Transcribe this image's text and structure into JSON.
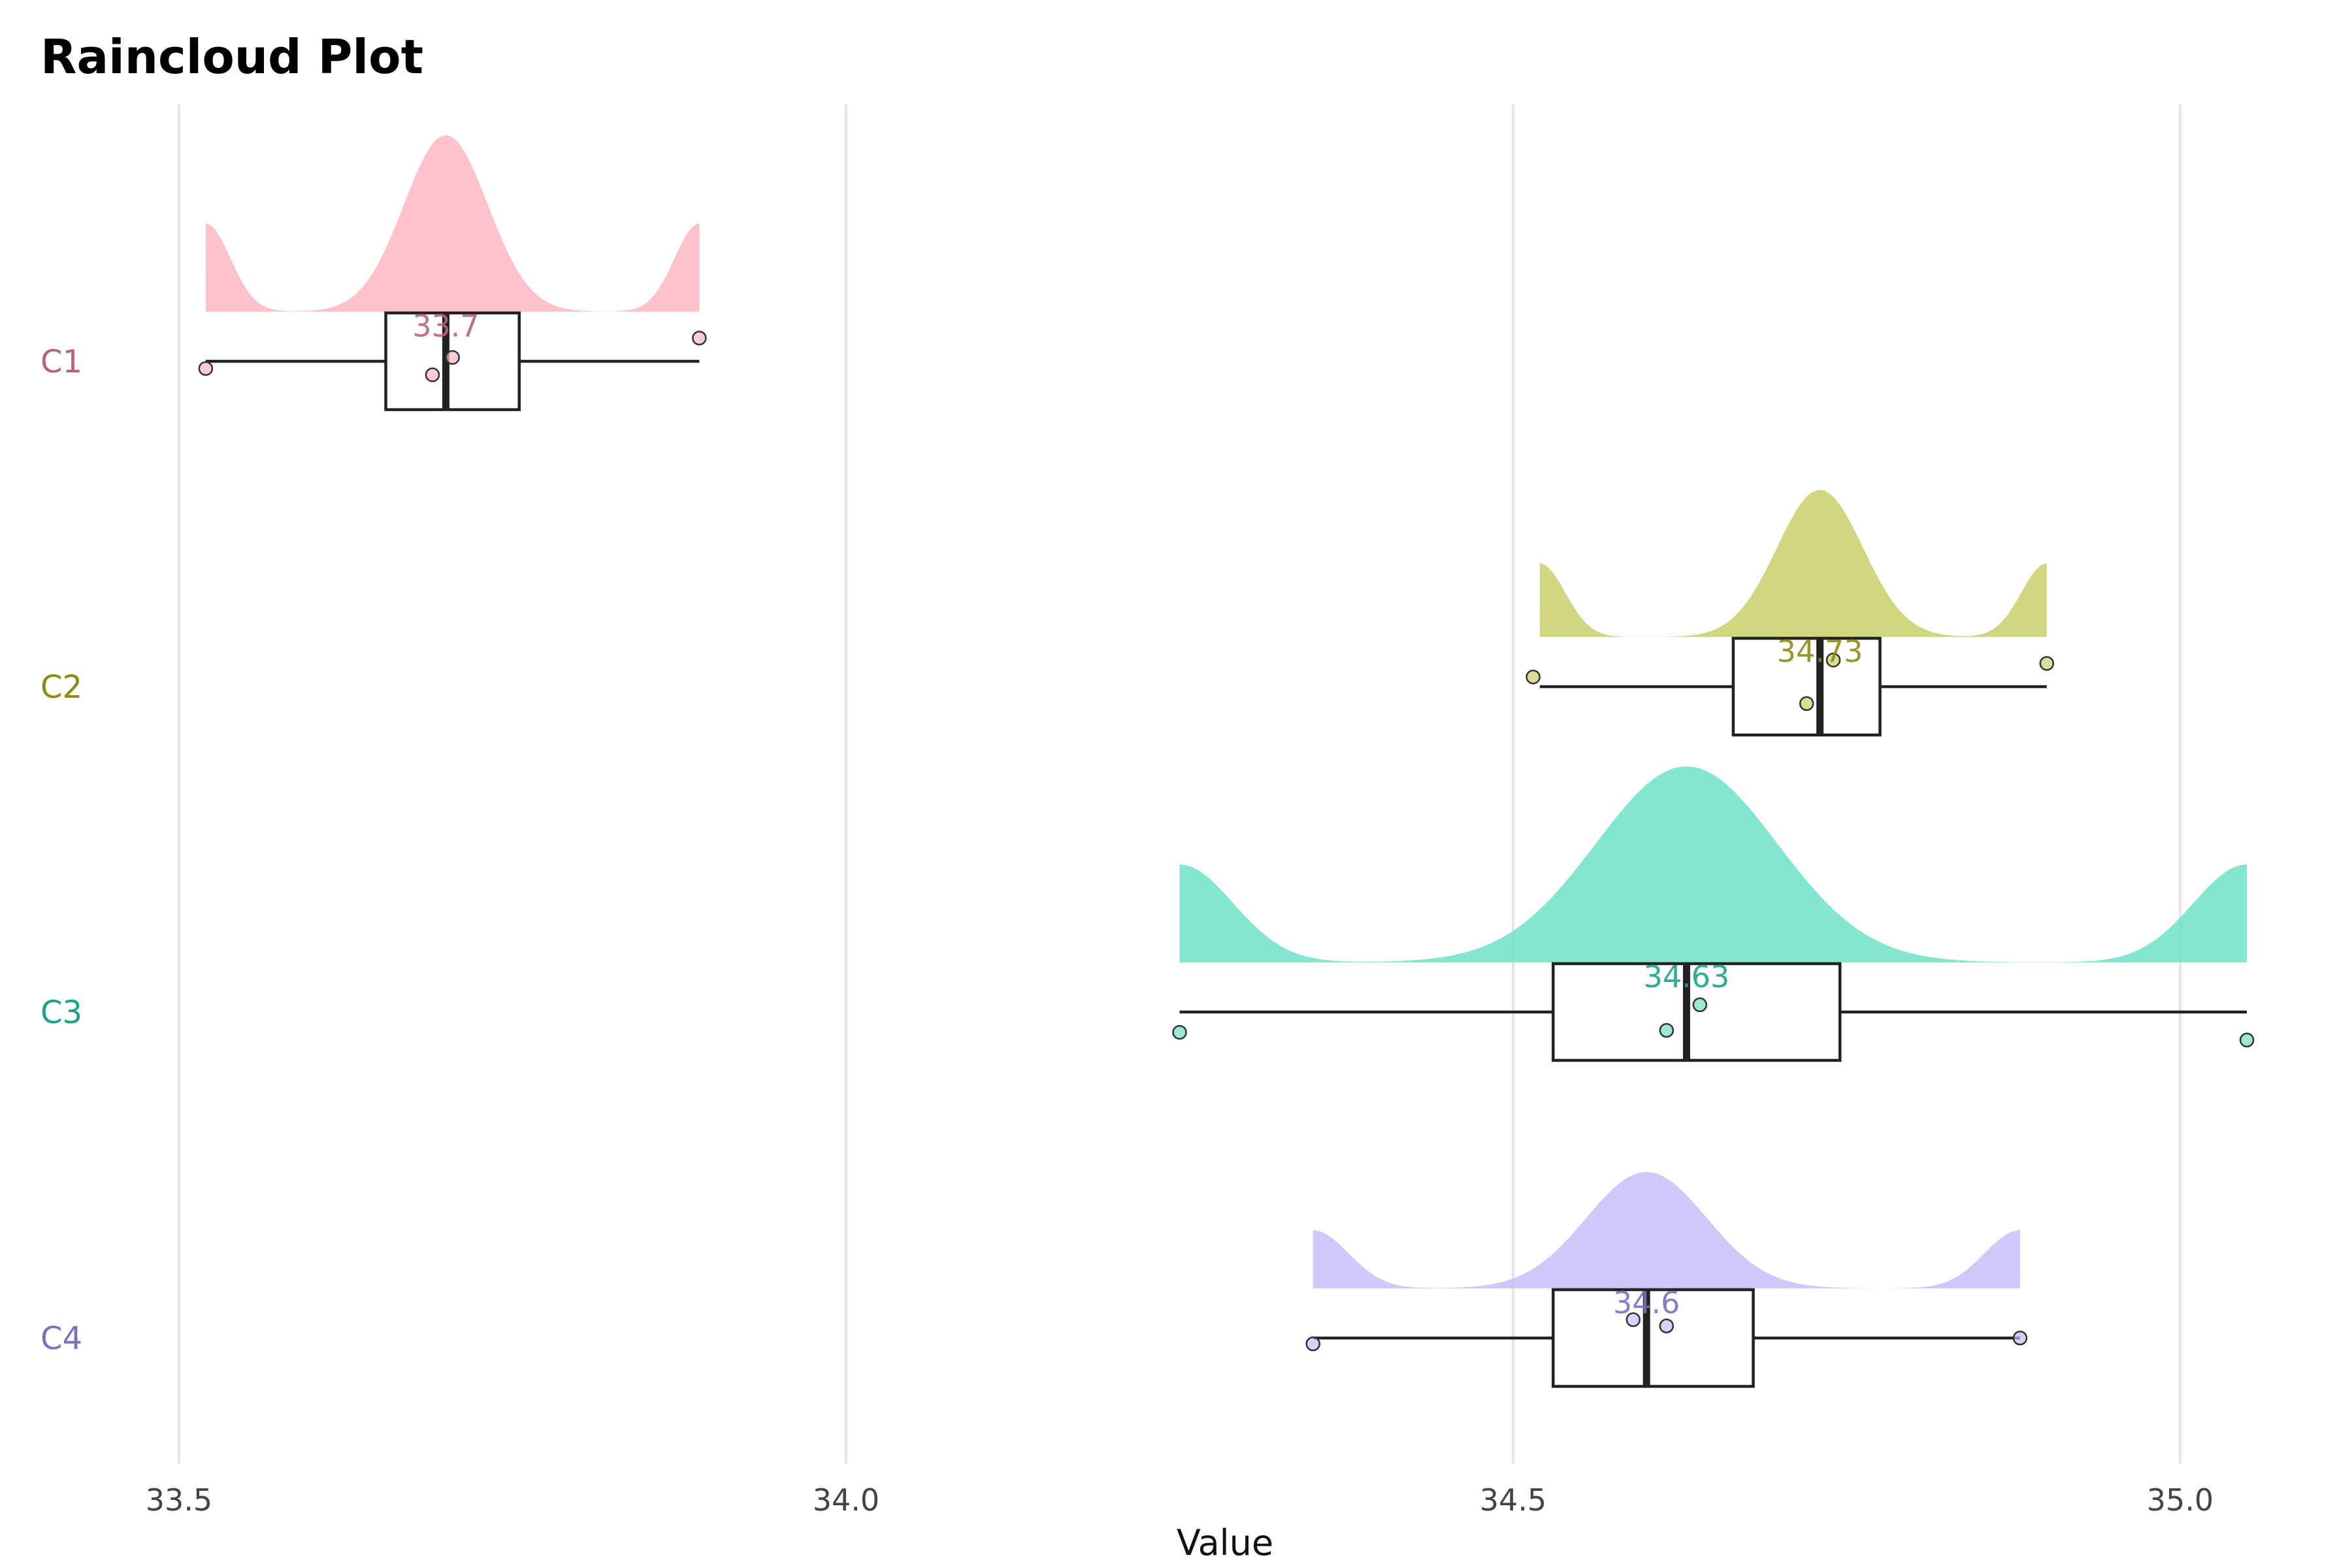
{
  "chart_data": {
    "type": "raincloud",
    "title": "Raincloud Plot",
    "xlabel": "Value",
    "ylabel": "",
    "xlim": [
      33.46,
      35.12
    ],
    "xticks": [
      33.5,
      34.0,
      34.5,
      35.0
    ],
    "xtick_labels": [
      "33.5",
      "34.0",
      "34.5",
      "35.0"
    ],
    "grid": true,
    "categories": [
      "C1",
      "C2",
      "C3",
      "C4"
    ],
    "groups": [
      {
        "name": "C1",
        "color": "#ffb6c1",
        "label_color": "#b86478",
        "min": 33.52,
        "q1": 33.655,
        "median": 33.7,
        "q3": 33.755,
        "max": 33.89,
        "median_label": "33.7",
        "points": [
          {
            "x": 33.52,
            "jitter": -0.15
          },
          {
            "x": 33.69,
            "jitter": -0.28
          },
          {
            "x": 33.705,
            "jitter": 0.08
          },
          {
            "x": 33.89,
            "jitter": 0.48
          }
        ]
      },
      {
        "name": "C2",
        "color": "#c9cf6a",
        "label_color": "#8c8c14",
        "min": 34.52,
        "q1": 34.665,
        "median": 34.73,
        "q3": 34.775,
        "max": 34.9,
        "median_label": "34.73",
        "points": [
          {
            "x": 34.515,
            "jitter": 0.2
          },
          {
            "x": 34.72,
            "jitter": -0.35
          },
          {
            "x": 34.74,
            "jitter": 0.55
          },
          {
            "x": 34.9,
            "jitter": 0.48
          }
        ]
      },
      {
        "name": "C3",
        "color": "#6fe0c8",
        "label_color": "#1aa38a",
        "min": 34.25,
        "q1": 34.53,
        "median": 34.63,
        "q3": 34.745,
        "max": 35.05,
        "median_label": "34.63",
        "points": [
          {
            "x": 34.25,
            "jitter": -0.42
          },
          {
            "x": 34.615,
            "jitter": -0.38
          },
          {
            "x": 34.64,
            "jitter": 0.15
          },
          {
            "x": 35.05,
            "jitter": -0.58
          }
        ]
      },
      {
        "name": "C4",
        "color": "#c5bff8",
        "label_color": "#7a70c2",
        "min": 34.35,
        "q1": 34.53,
        "median": 34.6,
        "q3": 34.68,
        "max": 34.88,
        "median_label": "34.6",
        "points": [
          {
            "x": 34.35,
            "jitter": -0.12
          },
          {
            "x": 34.59,
            "jitter": 0.38
          },
          {
            "x": 34.615,
            "jitter": 0.25
          },
          {
            "x": 34.88,
            "jitter": 0.0
          }
        ]
      }
    ]
  }
}
